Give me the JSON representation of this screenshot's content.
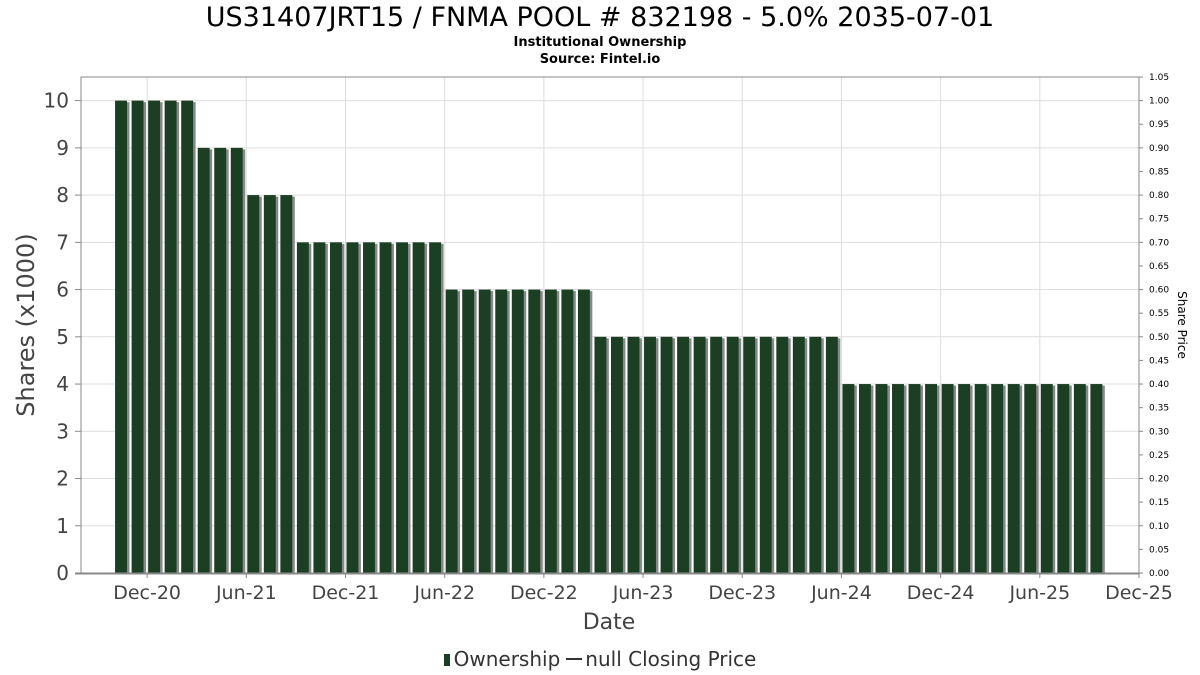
{
  "title": "US31407JRT15 / FNMA POOL # 832198 - 5.0% 2035-07-01",
  "subtitle": "Institutional Ownership",
  "source": "Source: Fintel.io",
  "colors": {
    "bar": "#1b3f22",
    "bar_shadow": "#888888",
    "grid": "#dddddd",
    "axis": "#888888"
  },
  "chart_data": {
    "type": "bar",
    "title": "US31407JRT15 / FNMA POOL # 832198 - 5.0% 2035-07-01",
    "xlabel": "Date",
    "ylabel": "Shares (x1000)",
    "y2label": "Share Price",
    "ylim": [
      0,
      10.5
    ],
    "y2lim": [
      0,
      1.05
    ],
    "xlim": [
      "2020-08-01",
      "2025-12-01"
    ],
    "x_ticks": [
      "Dec-20",
      "Jun-21",
      "Dec-21",
      "Jun-22",
      "Dec-22",
      "Jun-23",
      "Dec-23",
      "Jun-24",
      "Dec-24",
      "Jun-25",
      "Dec-25"
    ],
    "y_ticks": [
      "0",
      "1",
      "2",
      "3",
      "4",
      "5",
      "6",
      "7",
      "8",
      "9",
      "10"
    ],
    "y2_ticks": [
      "0.00",
      "0.05",
      "0.10",
      "0.15",
      "0.20",
      "0.25",
      "0.30",
      "0.35",
      "0.40",
      "0.45",
      "0.50",
      "0.55",
      "0.60",
      "0.65",
      "0.70",
      "0.75",
      "0.80",
      "0.85",
      "0.90",
      "0.95",
      "1.00",
      "1.05"
    ],
    "grid": true,
    "legend_position": "bottom",
    "series": [
      {
        "name": "Ownership",
        "start_month": "2020-10",
        "period": "monthly",
        "values": [
          10,
          10,
          10,
          10,
          10,
          9,
          9,
          9,
          8,
          8,
          8,
          7,
          7,
          7,
          7,
          7,
          7,
          7,
          7,
          7,
          6,
          6,
          6,
          6,
          6,
          6,
          6,
          6,
          6,
          5,
          5,
          5,
          5,
          5,
          5,
          5,
          5,
          5,
          5,
          5,
          5,
          5,
          5,
          5,
          4,
          4,
          4,
          4,
          4,
          4,
          4,
          4,
          4,
          4,
          4,
          4,
          4,
          4,
          4,
          4
        ]
      }
    ]
  },
  "legend": {
    "ownership_label": "Ownership",
    "price_label": "null Closing Price"
  }
}
